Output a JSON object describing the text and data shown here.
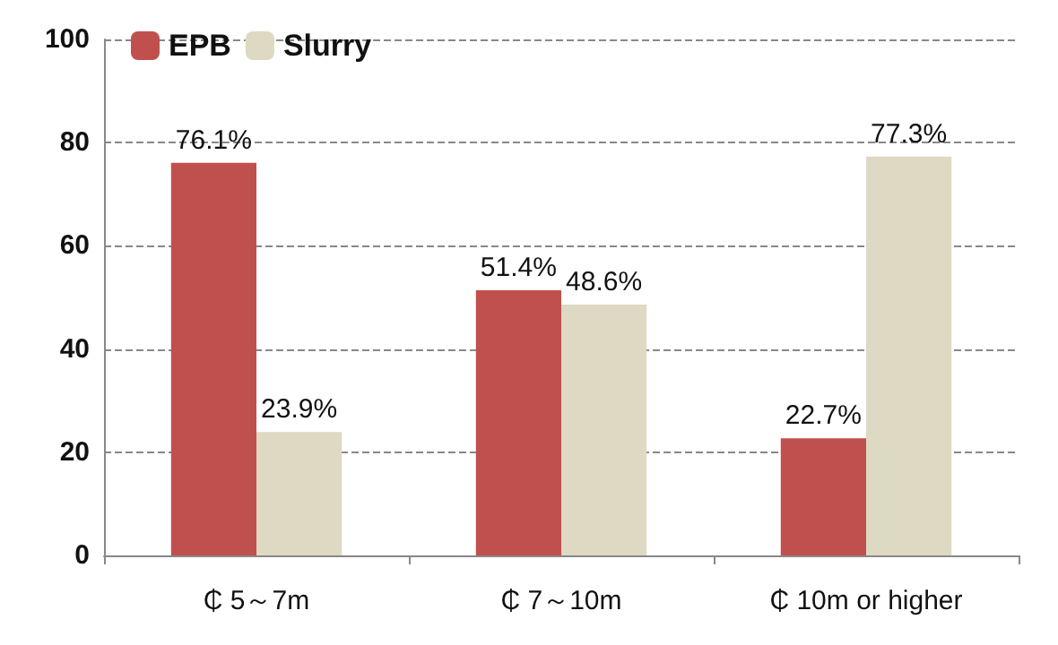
{
  "chart_data": {
    "type": "bar",
    "categories": [
      "₵ 5～7m",
      "₵ 7～10m",
      "₵ 10m or higher"
    ],
    "series": [
      {
        "name": "EPB",
        "color": "#c0504d",
        "values": [
          76.1,
          51.4,
          22.7
        ],
        "value_labels": [
          "76.1%",
          "51.4%",
          "22.7%"
        ]
      },
      {
        "name": "Slurry",
        "color": "#ddd9c3",
        "values": [
          23.9,
          48.6,
          77.3
        ],
        "value_labels": [
          "23.9%",
          "48.6%",
          "77.3%"
        ]
      }
    ],
    "ylim": [
      0,
      100
    ],
    "yticks": [
      0,
      20,
      40,
      60,
      80,
      100
    ],
    "grid": "y",
    "legend": "top left"
  }
}
